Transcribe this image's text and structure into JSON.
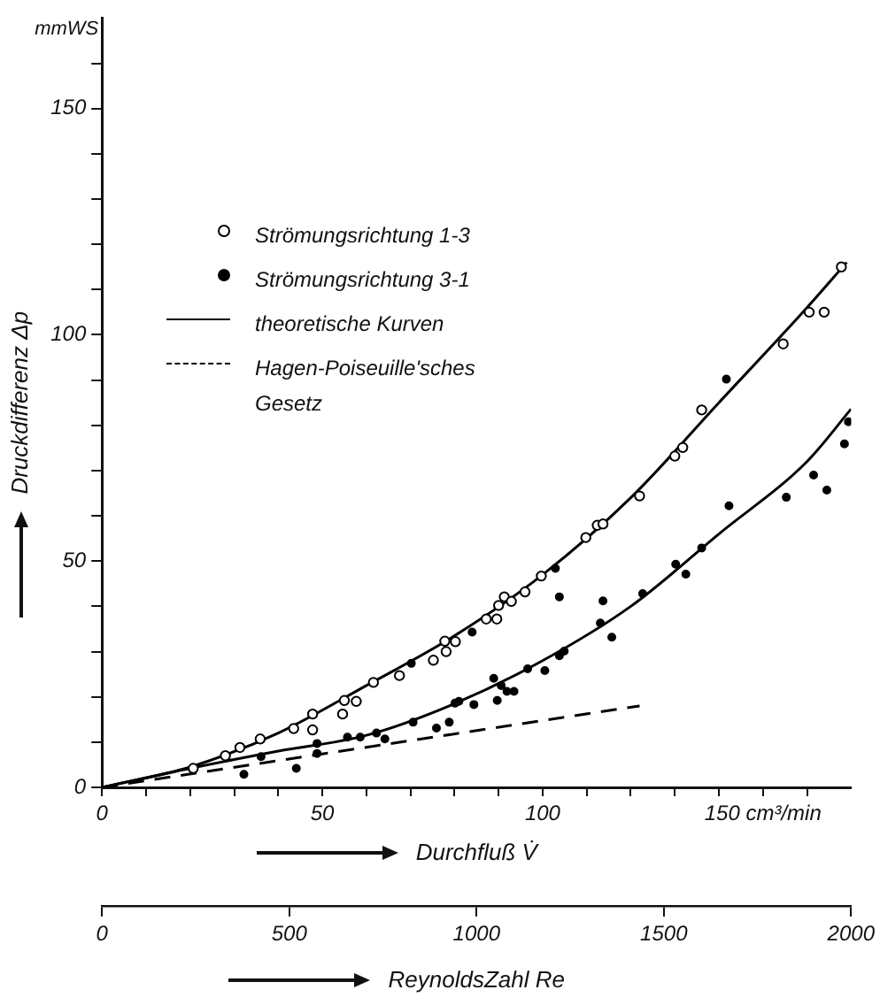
{
  "chart_data": {
    "type": "scatter",
    "xlabel": "Durchfluß V̇",
    "ylabel": "Druckdifferenz Δp",
    "x2label": "ReynoldsZahl Re",
    "annotations": [
      "mmWS"
    ],
    "xlim": [
      0,
      170
    ],
    "xticks": [
      0,
      {
        "value": 10,
        "label": null
      },
      {
        "value": 20,
        "label": null
      },
      {
        "value": 30,
        "label": null
      },
      {
        "value": 40,
        "label": null
      },
      50,
      {
        "value": 60,
        "label": null
      },
      {
        "value": 70,
        "label": null
      },
      {
        "value": 80,
        "label": null
      },
      {
        "value": 90,
        "label": null
      },
      100,
      {
        "value": 110,
        "label": null
      },
      {
        "value": 120,
        "label": null
      },
      {
        "value": 130,
        "label": null
      },
      {
        "value": 140,
        "label": null
      },
      {
        "value": 150,
        "label": "150 cm³/min"
      },
      {
        "value": 160,
        "label": null
      }
    ],
    "x2lim": [
      0,
      2000
    ],
    "x2ticks": [
      0,
      500,
      1000,
      1500,
      2000
    ],
    "ylim": [
      0,
      170
    ],
    "yticks": [
      0,
      {
        "value": 10,
        "label": null
      },
      {
        "value": 20,
        "label": null
      },
      {
        "value": 30,
        "label": null
      },
      {
        "value": 40,
        "label": null
      },
      50,
      {
        "value": 60,
        "label": null
      },
      {
        "value": 70,
        "label": null
      },
      {
        "value": 80,
        "label": null
      },
      {
        "value": 90,
        "label": null
      },
      100,
      {
        "value": 110,
        "label": null
      },
      {
        "value": 120,
        "label": null
      },
      {
        "value": 130,
        "label": null
      },
      {
        "value": 140,
        "label": null
      },
      150,
      {
        "value": 160,
        "label": null
      }
    ],
    "grid": false,
    "legend": "top left",
    "marker": "circle",
    "series": [
      {
        "name": "Strömungsrichtung 1-3",
        "color": "#000000",
        "x": [
          20.7,
          28,
          31.3,
          35.9,
          43.5,
          47.8,
          47.8,
          54.6,
          55,
          57.7,
          61.6,
          67.5,
          75.2,
          78.1,
          77.8,
          80.2,
          87.2,
          89.6,
          90,
          91.3,
          92.9,
          96,
          99.7,
          109.8,
          112.4,
          113.7,
          122,
          130,
          131.8,
          136.1,
          154.6,
          160.5,
          163.9,
          167.8
        ],
        "values": [
          4.2,
          7,
          8.8,
          10.7,
          13,
          12.7,
          16.2,
          16.2,
          19.2,
          19,
          23.2,
          24.7,
          28.1,
          30,
          32.3,
          32.2,
          37.2,
          37.2,
          40.2,
          42.1,
          41.1,
          43.2,
          46.7,
          55.2,
          57.9,
          58.2,
          64.4,
          73.2,
          75.1,
          83.4,
          98,
          105,
          105,
          115
        ]
      },
      {
        "name": "Strömungsrichtung 3-1",
        "color": "#000000",
        "x": [
          32.2,
          36.1,
          44.1,
          48.8,
          48.8,
          55.7,
          58.6,
          62.3,
          64.2,
          70.6,
          70.2,
          75.9,
          78.8,
          80.1,
          81,
          84.4,
          84,
          88.9,
          89.7,
          90.6,
          91.9,
          93.5,
          96.6,
          100.5,
          102.9,
          103.8,
          103.8,
          104.9,
          113.1,
          113.7,
          115.7,
          122.7,
          130.2,
          132.5,
          136.1,
          142.3,
          141.7,
          155.3,
          161.5,
          164.5,
          168.5,
          169.4
        ],
        "values": [
          2.9,
          6.8,
          4.2,
          9.7,
          7.5,
          11.1,
          11.1,
          12,
          10.7,
          14.4,
          27.4,
          13.1,
          14.4,
          18.6,
          19,
          18.3,
          34.3,
          24.1,
          19.2,
          22.5,
          21.2,
          21.2,
          26.2,
          25.8,
          48.4,
          42.1,
          29.1,
          30.1,
          36.3,
          41.2,
          33.2,
          42.8,
          49.3,
          47.1,
          52.9,
          62.2,
          90.2,
          64.1,
          69,
          65.7,
          75.9,
          80.8
        ]
      },
      {
        "name": "theoretische Kurven",
        "type": "line",
        "line_style": "solid",
        "marker": "none",
        "color": "#000000",
        "x": [
          0,
          20,
          40,
          60,
          80,
          100,
          120,
          140,
          160,
          169
        ],
        "values": [
          0,
          4.5,
          12,
          22.5,
          33.5,
          47,
          64,
          85,
          106,
          116
        ]
      },
      {
        "type": "line",
        "line_style": "solid",
        "marker": "none",
        "color": "#000000",
        "x": [
          0,
          20,
          40,
          60,
          80,
          100,
          120,
          140,
          160,
          170
        ],
        "values": [
          0,
          4.2,
          8,
          11.5,
          18.5,
          28,
          40,
          56,
          72,
          83.6
        ]
      },
      {
        "name": "Hagen-Poiseuille'sches Gesetz",
        "type": "line",
        "line_style": "dashed",
        "marker": "none",
        "color": "#000000",
        "x": [
          0,
          122
        ],
        "values": [
          0,
          18
        ]
      }
    ]
  }
}
